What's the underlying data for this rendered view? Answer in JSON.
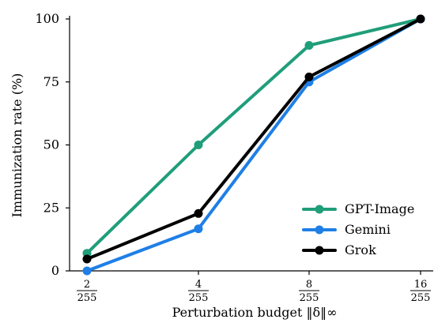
{
  "chart_data": {
    "type": "line",
    "xlabel": "Perturbation budget ‖δ‖∞",
    "ylabel": "Immunization rate (%)",
    "x_ticks": [
      {
        "numerator": "2",
        "denominator": "255"
      },
      {
        "numerator": "4",
        "denominator": "255"
      },
      {
        "numerator": "8",
        "denominator": "255"
      },
      {
        "numerator": "16",
        "denominator": "255"
      }
    ],
    "y_ticks": [
      "0",
      "25",
      "50",
      "75",
      "100"
    ],
    "ylim": [
      0,
      100
    ],
    "grid": false,
    "legend_position": "bottom-right",
    "series": [
      {
        "name": "GPT-Image",
        "color": "#1f9e7a",
        "values": [
          7,
          50,
          89.5,
          100
        ]
      },
      {
        "name": "Gemini",
        "color": "#1f7fe6",
        "values": [
          0,
          16.7,
          75,
          100
        ]
      },
      {
        "name": "Grok",
        "color": "#000000",
        "values": [
          4.7,
          22.8,
          77,
          100
        ]
      }
    ]
  }
}
